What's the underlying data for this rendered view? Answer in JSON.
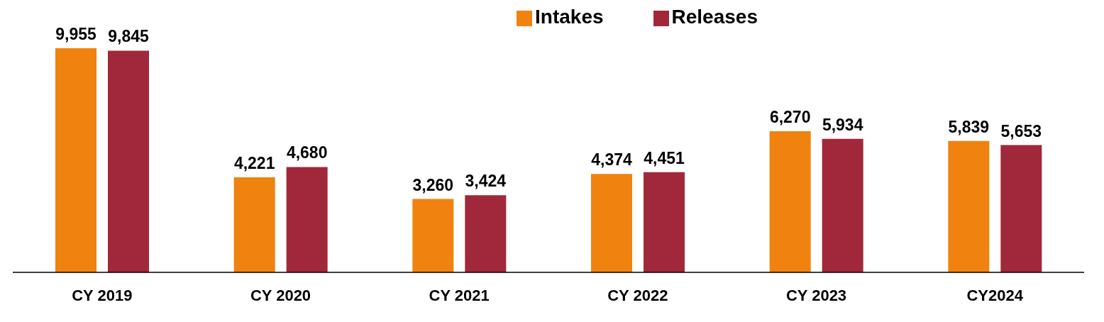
{
  "chart_data": {
    "type": "bar",
    "categories": [
      "CY 2019",
      "CY 2020",
      "CY 2021",
      "CY 2022",
      "CY 2023",
      "CY2024"
    ],
    "series": [
      {
        "name": "Intakes",
        "color": "#f0820f",
        "values": [
          9955,
          4221,
          3260,
          4374,
          6270,
          5839
        ],
        "value_labels": [
          "9,955",
          "4,221",
          "3,260",
          "4,374",
          "6,270",
          "5,839"
        ]
      },
      {
        "name": "Releases",
        "color": "#a0283a",
        "values": [
          9845,
          4680,
          3424,
          4451,
          5934,
          5653
        ],
        "value_labels": [
          "9,845",
          "4,680",
          "3,424",
          "4,451",
          "5,934",
          "5,653"
        ]
      }
    ],
    "legend": "top",
    "grid": false
  }
}
